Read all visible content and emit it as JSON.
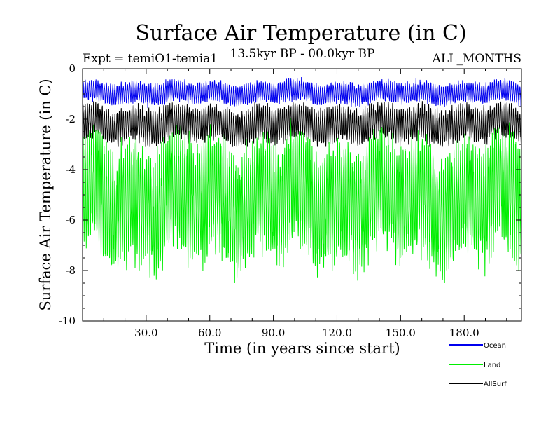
{
  "chart_data": {
    "type": "line",
    "title": "Surface Air Temperature (in C)",
    "subtitle_left": "Expt = temiO1-temia1",
    "subtitle_center": "13.5kyr BP - 00.0kyr BP",
    "subtitle_right": "ALL_MONTHS",
    "xlabel": "Time (in years since start)",
    "ylabel": "Surface Air Temperature (in C)",
    "xlim": [
      0,
      207
    ],
    "ylim": [
      -10,
      0
    ],
    "x_ticks": [
      30,
      60,
      90,
      120,
      150,
      180
    ],
    "x_tick_labels": [
      "30.0",
      "60.0",
      "90.0",
      "120.0",
      "150.0",
      "180.0"
    ],
    "y_ticks": [
      0,
      -2,
      -4,
      -6,
      -8,
      -10
    ],
    "y_tick_labels": [
      "0",
      "-2",
      "-4",
      "-6",
      "-8",
      "-10"
    ],
    "grid": false,
    "legend_position": "bottom-right",
    "series": [
      {
        "name": "Land",
        "color": "#00ee00",
        "style": "monthly oscillation",
        "mean": -5.2,
        "typical_range": [
          -7.5,
          -2.5
        ],
        "extremes": [
          -8.5,
          -1.6
        ]
      },
      {
        "name": "AllSurf",
        "color": "#000000",
        "style": "monthly oscillation",
        "mean": -2.2,
        "typical_range": [
          -2.9,
          -1.4
        ],
        "extremes": [
          -3.1,
          -1.2
        ]
      },
      {
        "name": "Ocean",
        "color": "#0000ee",
        "style": "monthly oscillation",
        "mean": -0.95,
        "typical_range": [
          -1.4,
          -0.5
        ],
        "extremes": [
          -1.6,
          -0.1
        ]
      }
    ],
    "legend": [
      "Ocean",
      "Land",
      "AllSurf"
    ]
  }
}
